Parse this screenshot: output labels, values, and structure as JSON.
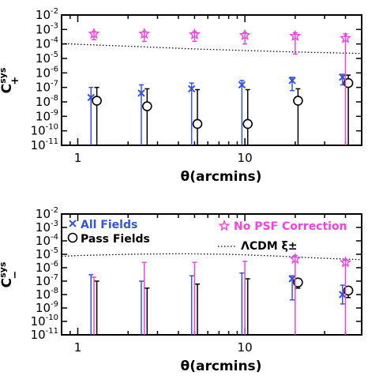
{
  "chart_data": [
    {
      "type": "scatter",
      "panel": "top",
      "ylabel_main": "C",
      "ylabel_sup": "sys",
      "ylabel_sub": "+",
      "xlabel": "θ(arcmins)",
      "xscale": "log",
      "yscale": "log",
      "xlim": [
        0.8,
        50
      ],
      "ylim": [
        1e-11,
        0.01
      ],
      "x_ticks": [
        1,
        10
      ],
      "y_ticks": [
        "10-11",
        "10-10",
        "10-9",
        "10-8",
        "10-7",
        "10-6",
        "10-5",
        "10-4",
        "10-3",
        "10-2"
      ],
      "series": [
        {
          "key": "all",
          "color": "#3355dd",
          "marker": "x",
          "points": [
            {
              "x": 1.2,
              "y": 2e-08,
              "lo": 1e-11,
              "hi": 1e-07
            },
            {
              "x": 2.4,
              "y": 4e-08,
              "lo": 1e-11,
              "hi": 1.5e-07
            },
            {
              "x": 4.8,
              "y": 8e-08,
              "lo": 1e-11,
              "hi": 2e-07
            },
            {
              "x": 9.6,
              "y": 1.5e-07,
              "lo": 1e-11,
              "hi": 3e-07
            },
            {
              "x": 19.2,
              "y": 3e-07,
              "lo": 6e-08,
              "hi": 5e-07
            },
            {
              "x": 38.4,
              "y": 5e-07,
              "lo": 1.5e-07,
              "hi": 8e-07
            }
          ]
        },
        {
          "key": "pass",
          "color": "#000000",
          "marker": "o",
          "points": [
            {
              "x": 1.3,
              "y": 1.2e-08,
              "lo": 1e-11,
              "hi": 1e-07
            },
            {
              "x": 2.6,
              "y": 5e-09,
              "lo": 1e-11,
              "hi": 8e-08
            },
            {
              "x": 5.2,
              "y": 3e-10,
              "lo": 1e-11,
              "hi": 7e-08
            },
            {
              "x": 10.4,
              "y": 3e-10,
              "lo": 1e-11,
              "hi": 7e-08
            },
            {
              "x": 20.8,
              "y": 1.2e-08,
              "lo": 1e-11,
              "hi": 8e-08
            },
            {
              "x": 41.6,
              "y": 2e-07,
              "lo": 1e-11,
              "hi": 7e-07
            }
          ]
        },
        {
          "key": "nopsf",
          "color": "#ee44dd",
          "marker": "star",
          "points": [
            {
              "x": 1.25,
              "y": 0.0005,
              "lo": 0.0002,
              "hi": 0.0007
            },
            {
              "x": 2.5,
              "y": 0.0005,
              "lo": 0.00015,
              "hi": 0.0007
            },
            {
              "x": 5.0,
              "y": 0.00045,
              "lo": 0.00015,
              "hi": 0.0007
            },
            {
              "x": 10.0,
              "y": 0.0004,
              "lo": 0.0001,
              "hi": 0.0006
            },
            {
              "x": 20.0,
              "y": 0.00035,
              "lo": 2e-05,
              "hi": 0.0006
            },
            {
              "x": 40.0,
              "y": 0.00025,
              "lo": 1e-11,
              "hi": 0.0005
            }
          ]
        }
      ],
      "model_line": {
        "key": "lcdm",
        "style": "dotted",
        "x": [
          0.8,
          1,
          2,
          5,
          10,
          20,
          50
        ],
        "y": [
          0.00011,
          9.5e-05,
          7e-05,
          4.5e-05,
          3.5e-05,
          2.8e-05,
          2.2e-05
        ]
      }
    },
    {
      "type": "scatter",
      "panel": "bottom",
      "ylabel_main": "C",
      "ylabel_sup": "sys",
      "ylabel_sub": "−",
      "xlabel": "θ(arcmins)",
      "xscale": "log",
      "yscale": "log",
      "xlim": [
        0.8,
        50
      ],
      "ylim": [
        1e-11,
        0.01
      ],
      "x_ticks": [
        1,
        10
      ],
      "y_ticks": [
        "10-11",
        "10-10",
        "10-9",
        "10-8",
        "10-7",
        "10-6",
        "10-5",
        "10-4",
        "10-3",
        "10-2"
      ],
      "legend": [
        {
          "key": "all",
          "label": "All Fields",
          "color": "#3355dd",
          "marker": "x"
        },
        {
          "key": "pass",
          "label": "Pass Fields",
          "color": "#000000",
          "marker": "o"
        },
        {
          "key": "nopsf",
          "label": "No PSF Correction",
          "color": "#ee44dd",
          "marker": "star"
        },
        {
          "key": "lcdm",
          "label": "ΛCDM ξ±",
          "color": "#000000",
          "marker": "dotted"
        }
      ],
      "series": [
        {
          "key": "all",
          "color": "#3355dd",
          "marker": "x",
          "points": [
            {
              "x": 1.2,
              "y": 1e-11,
              "lo": 1e-11,
              "hi": 3e-07
            },
            {
              "x": 2.4,
              "y": 1e-11,
              "lo": 1e-11,
              "hi": 1e-07
            },
            {
              "x": 4.8,
              "y": 1e-11,
              "lo": 1e-11,
              "hi": 2.5e-07
            },
            {
              "x": 9.6,
              "y": 1e-11,
              "lo": 1e-11,
              "hi": 4e-07
            },
            {
              "x": 19.2,
              "y": 1.5e-07,
              "lo": 4e-09,
              "hi": 2.5e-07
            },
            {
              "x": 38.4,
              "y": 1e-08,
              "lo": 2e-09,
              "hi": 5e-08
            }
          ]
        },
        {
          "key": "pass",
          "color": "#000000",
          "marker": "o",
          "points": [
            {
              "x": 1.3,
              "y": 1e-11,
              "lo": 1e-11,
              "hi": 1e-07
            },
            {
              "x": 2.6,
              "y": 1e-11,
              "lo": 1e-11,
              "hi": 3e-08
            },
            {
              "x": 5.2,
              "y": 1e-11,
              "lo": 1e-11,
              "hi": 6e-08
            },
            {
              "x": 10.4,
              "y": 1e-11,
              "lo": 1e-11,
              "hi": 1.5e-07
            },
            {
              "x": 20.8,
              "y": 8e-08,
              "lo": 3e-08,
              "hi": 1.3e-07
            },
            {
              "x": 41.6,
              "y": 2e-08,
              "lo": 6e-09,
              "hi": 4e-08
            }
          ]
        },
        {
          "key": "nopsf",
          "color": "#ee44dd",
          "marker": "star",
          "points": [
            {
              "x": 1.25,
              "y": 1e-11,
              "lo": 1e-11,
              "hi": 2e-07
            },
            {
              "x": 2.5,
              "y": 1e-11,
              "lo": 1e-11,
              "hi": 2.5e-06
            },
            {
              "x": 5.0,
              "y": 1e-11,
              "lo": 1e-11,
              "hi": 2.5e-06
            },
            {
              "x": 10.0,
              "y": 1e-11,
              "lo": 1e-11,
              "hi": 3e-06
            },
            {
              "x": 20.0,
              "y": 4.5e-06,
              "lo": 1e-11,
              "hi": 8e-06
            },
            {
              "x": 40.0,
              "y": 2.5e-06,
              "lo": 1e-11,
              "hi": 4e-06
            }
          ]
        }
      ],
      "model_line": {
        "key": "lcdm",
        "style": "dotted",
        "x": [
          0.8,
          1,
          2,
          4,
          8,
          15,
          30,
          50
        ],
        "y": [
          7e-06,
          8e-06,
          1e-05,
          1.1e-05,
          1e-05,
          7.5e-06,
          5e-06,
          4e-06
        ]
      }
    }
  ]
}
